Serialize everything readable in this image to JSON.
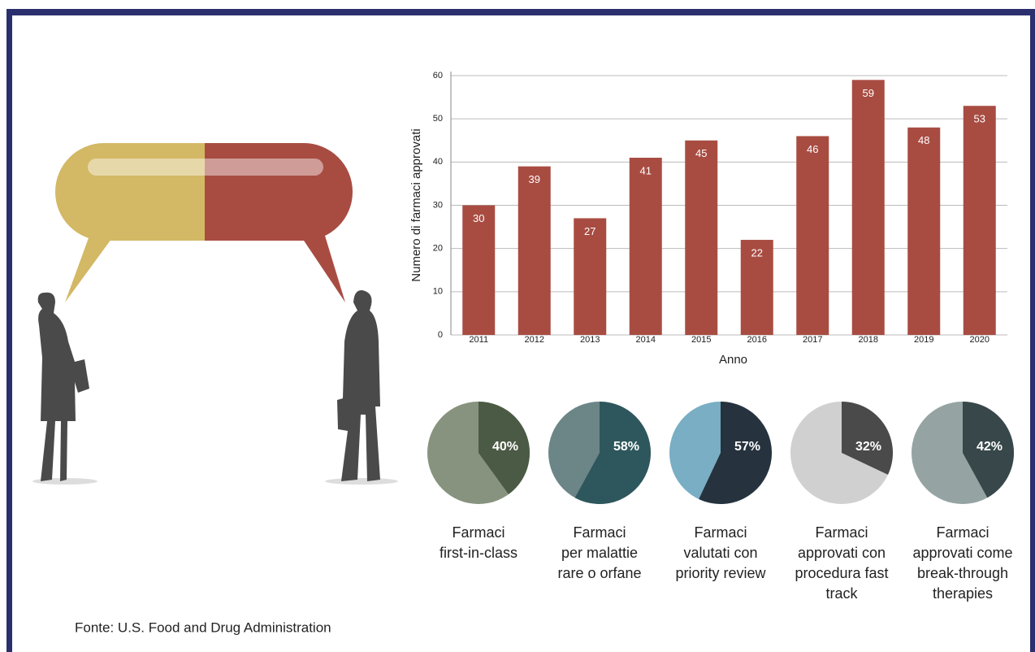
{
  "source": "Fonte: U.S. Food and Drug Administration",
  "chart_data": [
    {
      "type": "bar",
      "x_label": "Anno",
      "y_label": "Numero di farmaci approvati",
      "categories": [
        "2011",
        "2012",
        "2013",
        "2014",
        "2015",
        "2016",
        "2017",
        "2018",
        "2019",
        "2020"
      ],
      "values": [
        30,
        39,
        27,
        41,
        45,
        22,
        46,
        59,
        48,
        53
      ],
      "color": "#a84c42",
      "ylim": [
        0,
        60
      ],
      "yticks": [
        0,
        10,
        20,
        30,
        40,
        50,
        60
      ],
      "grid": true
    },
    {
      "type": "pie",
      "caption": [
        "Farmaci",
        "first-in-class"
      ],
      "values": [
        40
      ],
      "value_labels": [
        "40%"
      ],
      "color": "#4b5a44",
      "rest_color": "#87937e"
    },
    {
      "type": "pie",
      "caption": [
        "Farmaci",
        "per malattie",
        "rare o orfane"
      ],
      "values": [
        58
      ],
      "value_labels": [
        "58%"
      ],
      "color": "#2e575d",
      "rest_color": "#6c8688"
    },
    {
      "type": "pie",
      "caption": [
        "Farmaci",
        "valutati con",
        "priority review"
      ],
      "values": [
        57
      ],
      "value_labels": [
        "57%"
      ],
      "color": "#26323d",
      "rest_color": "#79aec4"
    },
    {
      "type": "pie",
      "caption": [
        "Farmaci",
        "approvati con",
        "procedura fast",
        "track"
      ],
      "values": [
        32
      ],
      "value_labels": [
        "32%"
      ],
      "color": "#4a4a4a",
      "rest_color": "#d0d0d0"
    },
    {
      "type": "pie",
      "caption": [
        "Farmaci",
        "approvati come",
        "break-through",
        "therapies"
      ],
      "values": [
        42
      ],
      "value_labels": [
        "42%"
      ],
      "color": "#37474a",
      "rest_color": "#95a3a3"
    }
  ]
}
